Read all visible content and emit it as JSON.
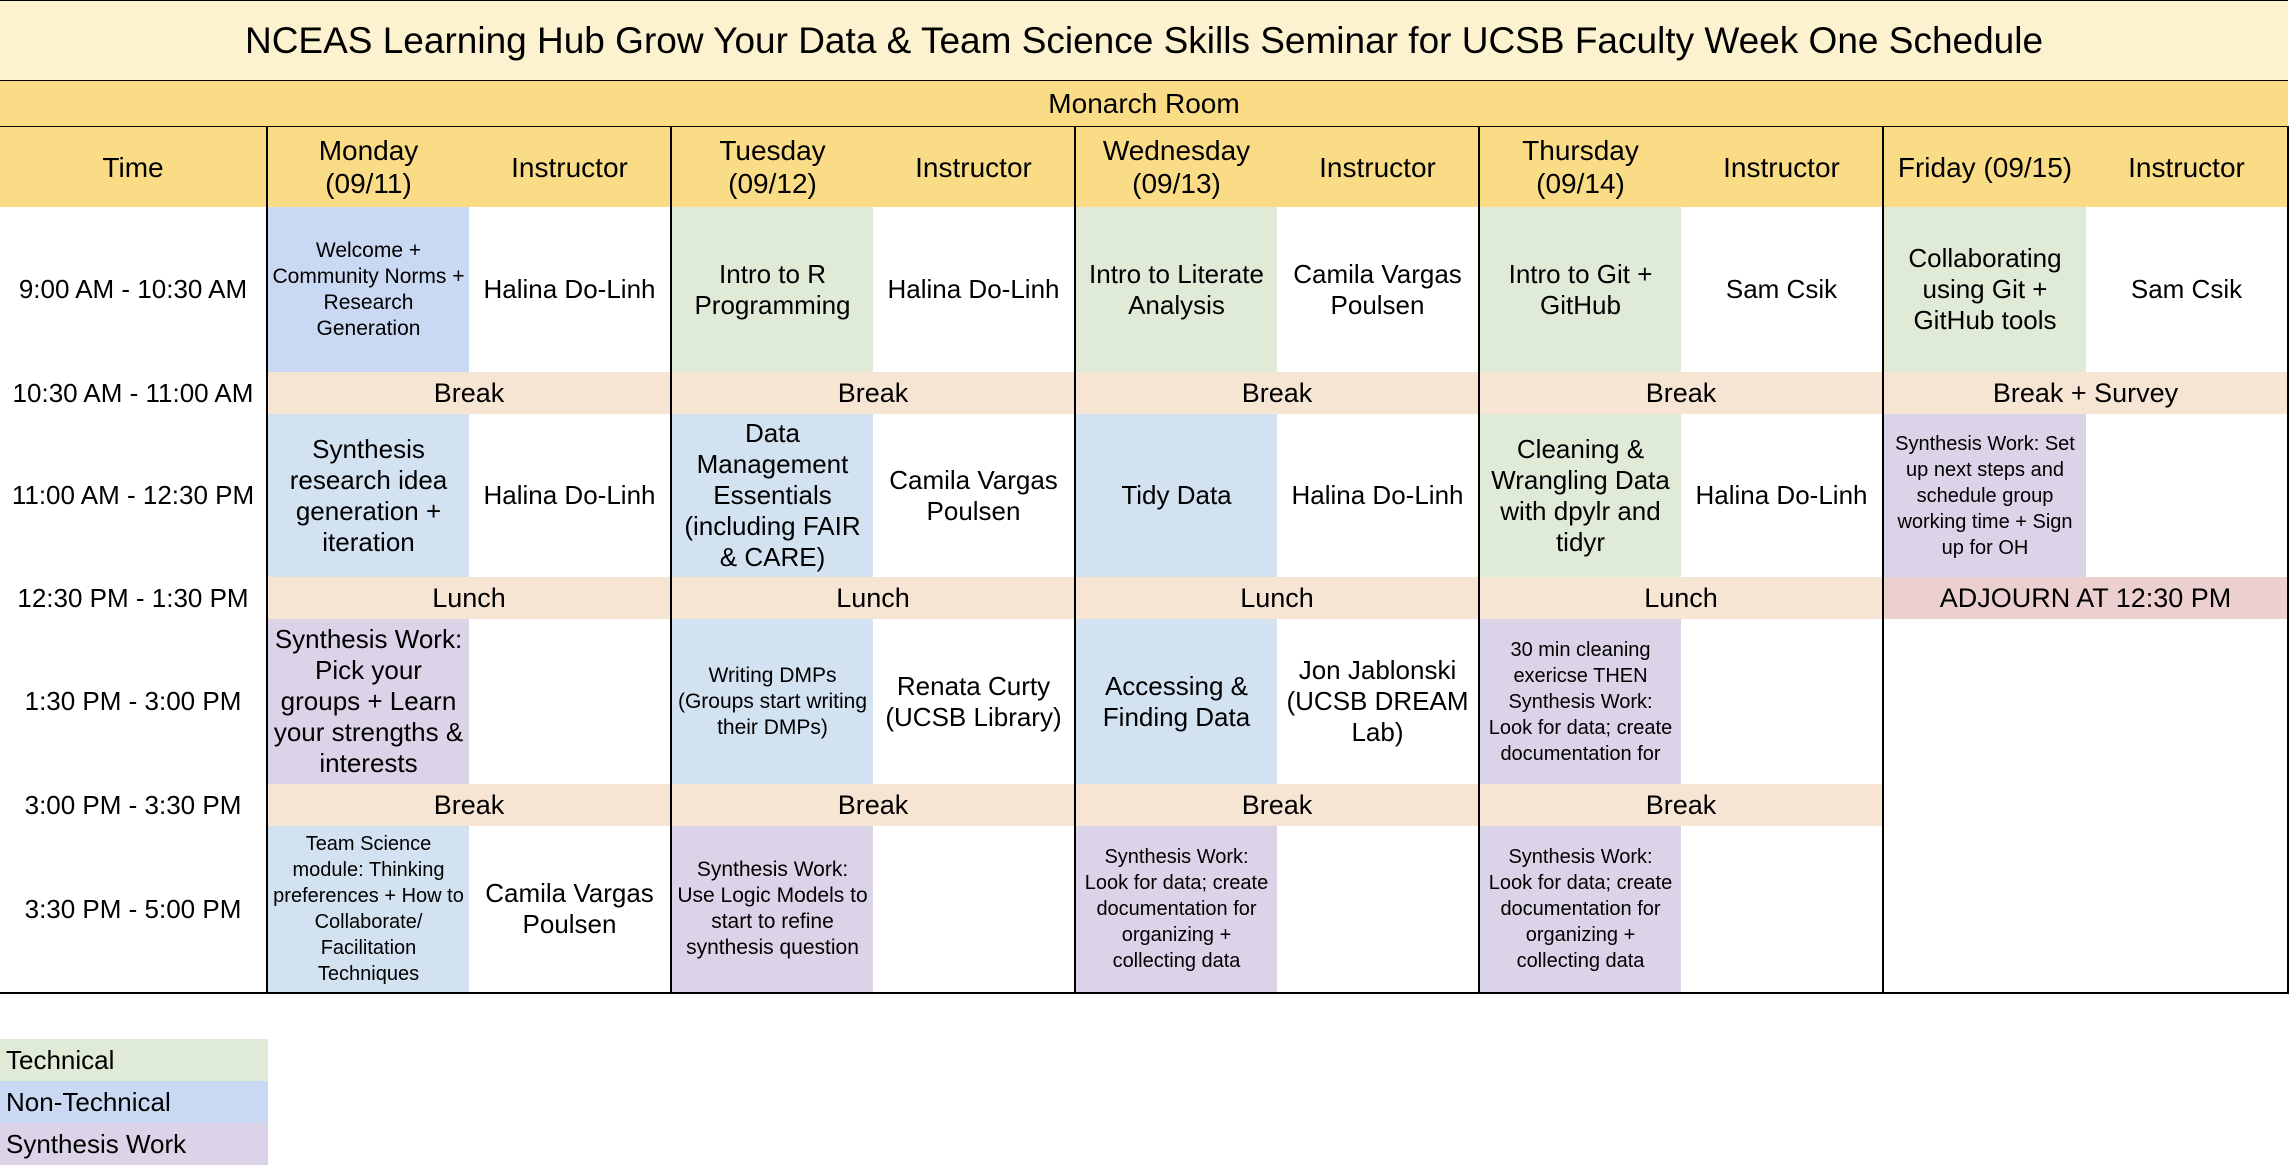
{
  "title": "NCEAS Learning Hub Grow Your Data & Team Science Skills Seminar for UCSB Faculty Week One Schedule",
  "room": "Monarch Room",
  "headers": {
    "time": "Time",
    "instructor": "Instructor",
    "days": [
      "Monday\n(09/11)",
      "Tuesday\n(09/12)",
      "Wednesday\n(09/13)",
      "Thursday\n(09/14)",
      "Friday (09/15)"
    ]
  },
  "times": [
    "9:00 AM - 10:30 AM",
    "10:30 AM - 11:00 AM",
    "11:00 AM - 12:30 PM",
    "12:30 PM - 1:30 PM",
    "1:30 PM - 3:00 PM",
    "3:00 PM - 3:30 PM",
    "3:30 PM - 5:00 PM"
  ],
  "slot1": {
    "mon": {
      "session": "Welcome + Community Norms + Research Generation",
      "instructor": "Halina Do-Linh"
    },
    "tue": {
      "session": "Intro to R Programming",
      "instructor": "Halina Do-Linh"
    },
    "wed": {
      "session": "Intro to Literate Analysis",
      "instructor": "Camila Vargas Poulsen"
    },
    "thu": {
      "session": "Intro to Git + GitHub",
      "instructor": "Sam Csik"
    },
    "fri": {
      "session": "Collaborating using Git + GitHub tools",
      "instructor": "Sam Csik"
    }
  },
  "break1": {
    "mon": "Break",
    "tue": "Break",
    "wed": "Break",
    "thu": "Break",
    "fri": "Break + Survey"
  },
  "slot2": {
    "mon": {
      "session": "Synthesis research idea generation + iteration",
      "instructor": "Halina Do-Linh"
    },
    "tue": {
      "session": "Data Management Essentials (including FAIR & CARE)",
      "instructor": "Camila Vargas Poulsen"
    },
    "wed": {
      "session": "Tidy Data",
      "instructor": "Halina Do-Linh"
    },
    "thu": {
      "session": "Cleaning & Wrangling Data with dpylr and tidyr",
      "instructor": "Halina Do-Linh"
    },
    "fri": {
      "session": "Synthesis Work: Set up next steps and schedule group working time + Sign up for OH",
      "instructor": ""
    }
  },
  "lunch": {
    "mon": "Lunch",
    "tue": "Lunch",
    "wed": "Lunch",
    "thu": "Lunch",
    "fri": "ADJOURN AT 12:30 PM"
  },
  "slot3": {
    "mon": {
      "session": "Synthesis Work: Pick your groups + Learn your strengths & interests",
      "instructor": ""
    },
    "tue": {
      "session": "Writing DMPs (Groups start writing their DMPs)",
      "instructor": "Renata Curty (UCSB Library)"
    },
    "wed": {
      "session": "Accessing & Finding Data",
      "instructor": "Jon Jablonski (UCSB DREAM Lab)"
    },
    "thu": {
      "session": "30 min cleaning exericse THEN Synthesis Work: Look for data; create documentation for",
      "instructor": ""
    }
  },
  "break2": {
    "mon": "Break",
    "tue": "Break",
    "wed": "Break",
    "thu": "Break"
  },
  "slot4": {
    "mon": {
      "session": "Team Science module: Thinking preferences + How to Collaborate/ Facilitation Techniques",
      "instructor": "Camila Vargas Poulsen"
    },
    "tue": {
      "session": "Synthesis Work: Use Logic Models to start to refine synthesis question",
      "instructor": ""
    },
    "wed": {
      "session": "Synthesis Work: Look for data; create documentation for organizing + collecting data",
      "instructor": ""
    },
    "thu": {
      "session": "Synthesis Work: Look for data; create documentation for organizing + collecting data",
      "instructor": ""
    }
  },
  "legend": [
    {
      "label": "Technical",
      "color": "#dfebd7"
    },
    {
      "label": "Non-Technical",
      "color": "#cad9f3"
    },
    {
      "label": "Synthesis Work",
      "color": "#dbd3e7"
    }
  ]
}
